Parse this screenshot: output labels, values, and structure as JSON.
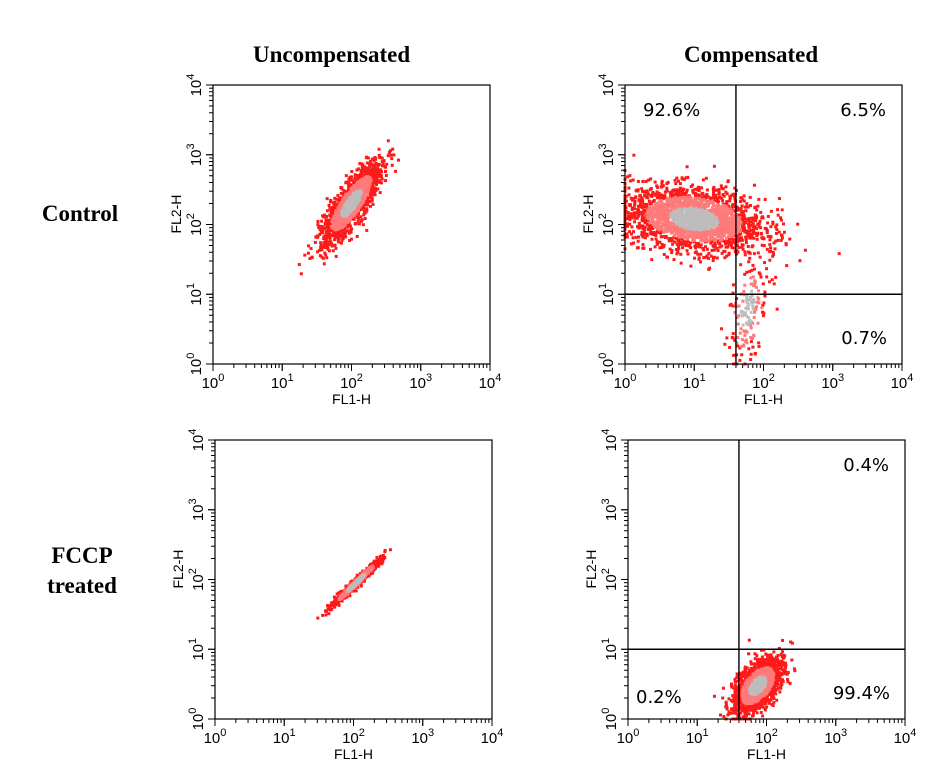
{
  "column_titles": [
    "Uncompensated",
    "Compensated"
  ],
  "row_titles": [
    [
      "Control"
    ],
    [
      "FCCP",
      "treated"
    ]
  ],
  "colors": {
    "outer": "#ff1a1a",
    "mid": "#ff7a7a",
    "core": "#bdbdbd",
    "axis": "#000000"
  },
  "chart_data": [
    {
      "type": "scatter",
      "id": "control-uncompensated",
      "xlabel": "FL1-H",
      "ylabel": "FL2-H",
      "xscale": "log",
      "yscale": "log",
      "xlim": [
        1,
        10000
      ],
      "ylim": [
        1,
        10000
      ],
      "tick_base": "10",
      "tick_exponents": [
        "0",
        "1",
        "2",
        "3",
        "4"
      ],
      "gates": null,
      "quadrant_labels": [],
      "populations": [
        {
          "center": [
            100,
            200
          ],
          "angle_deg": 55,
          "log_sd_major": 0.33,
          "log_sd_minor": 0.1,
          "events": 1600
        }
      ]
    },
    {
      "type": "scatter",
      "id": "control-compensated",
      "xlabel": "FL1-H",
      "ylabel": "FL2-H",
      "xscale": "log",
      "yscale": "log",
      "xlim": [
        1,
        10000
      ],
      "ylim": [
        1,
        10000
      ],
      "tick_base": "10",
      "tick_exponents": [
        "0",
        "1",
        "2",
        "3",
        "4"
      ],
      "gates": {
        "x": 40,
        "y": 10
      },
      "quadrant_labels": [
        {
          "quadrant": "upper-left",
          "text": "92.6%"
        },
        {
          "quadrant": "upper-right",
          "text": "6.5%"
        },
        {
          "quadrant": "lower-right",
          "text": "0.7%"
        }
      ],
      "populations": [
        {
          "center": [
            10,
            120
          ],
          "angle_deg": -8,
          "log_sd_major": 0.5,
          "log_sd_minor": 0.22,
          "events": 2200
        },
        {
          "center": [
            60,
            6
          ],
          "angle_deg": 80,
          "log_sd_major": 0.4,
          "log_sd_minor": 0.14,
          "events": 160
        }
      ]
    },
    {
      "type": "scatter",
      "id": "fccp-uncompensated",
      "xlabel": "FL1-H",
      "ylabel": "FL2-H",
      "xscale": "log",
      "yscale": "log",
      "xlim": [
        1,
        10000
      ],
      "ylim": [
        1,
        10000
      ],
      "tick_base": "10",
      "tick_exponents": [
        "0",
        "1",
        "2",
        "3",
        "4"
      ],
      "gates": null,
      "quadrant_labels": [],
      "populations": [
        {
          "center": [
            110,
            90
          ],
          "angle_deg": 44,
          "log_sd_major": 0.25,
          "log_sd_minor": 0.025,
          "events": 700
        }
      ]
    },
    {
      "type": "scatter",
      "id": "fccp-compensated",
      "xlabel": "FL1-H",
      "ylabel": "FL2-H",
      "xscale": "log",
      "yscale": "log",
      "xlim": [
        1,
        10000
      ],
      "ylim": [
        1,
        10000
      ],
      "tick_base": "10",
      "tick_exponents": [
        "0",
        "1",
        "2",
        "3",
        "4"
      ],
      "gates": {
        "x": 40,
        "y": 10
      },
      "quadrant_labels": [
        {
          "quadrant": "upper-right",
          "text": "0.4%"
        },
        {
          "quadrant": "lower-left",
          "text": "0.2%"
        },
        {
          "quadrant": "lower-right",
          "text": "99.4%"
        }
      ],
      "populations": [
        {
          "center": [
            75,
            3
          ],
          "angle_deg": 50,
          "log_sd_major": 0.22,
          "log_sd_minor": 0.12,
          "events": 1700
        }
      ]
    }
  ]
}
